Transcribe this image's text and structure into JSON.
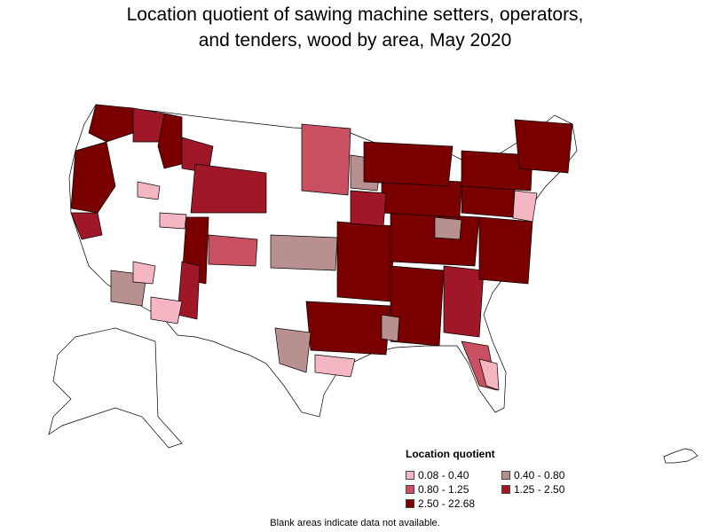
{
  "title": {
    "line1": "Location quotient of sawing machine setters, operators,",
    "line2": "and tenders, wood by area, May 2020"
  },
  "legend": {
    "title": "Location quotient",
    "items": [
      {
        "label": "0.08 - 0.40",
        "color": "#f4b6c2"
      },
      {
        "label": "0.40 - 0.80",
        "color": "#b99090"
      },
      {
        "label": "0.80 - 1.25",
        "color": "#c85060"
      },
      {
        "label": "1.25 - 2.50",
        "color": "#a01828"
      },
      {
        "label": "2.50 - 22.68",
        "color": "#7a0000"
      }
    ]
  },
  "footnote": "Blank areas indicate data not available.",
  "colors": {
    "no_data": "#ffffff",
    "border": "#000000"
  }
}
